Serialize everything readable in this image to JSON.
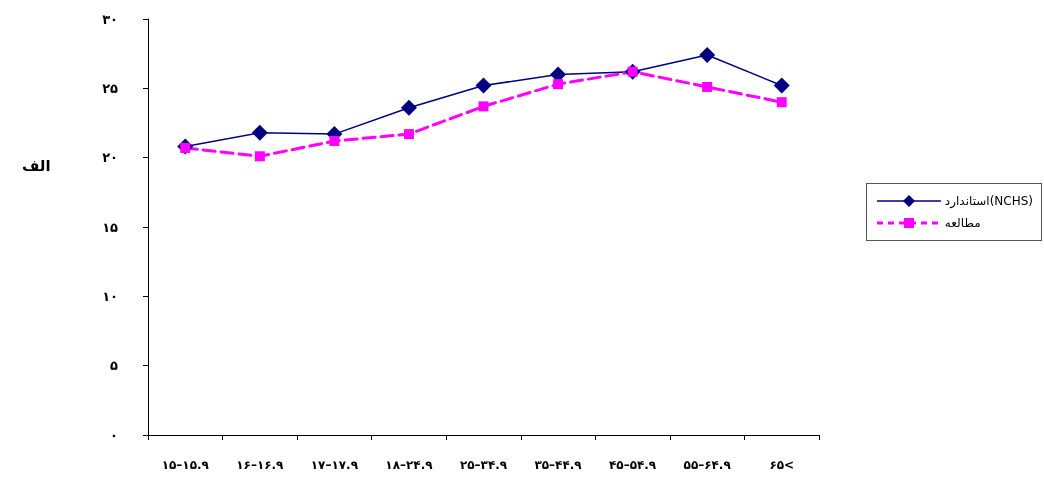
{
  "chart_data": {
    "type": "line",
    "ylabel": "الف",
    "categories": [
      "۱۵–۱۵.۹",
      "۱۶–۱۶.۹",
      "۱۷–۱۷.۹",
      "۱۸–۲۴.۹",
      "۲۵–۳۴.۹",
      "۳۵–۴۴.۹",
      "۴۵–۵۴.۹",
      "۵۵–۶۴.۹",
      "۶۵<"
    ],
    "series": [
      {
        "name": "استاندارد(NCHS)",
        "color": "#000080",
        "marker": "diamond",
        "line_style": "solid",
        "values": [
          20.8,
          21.8,
          21.7,
          23.6,
          25.2,
          26.0,
          26.2,
          27.4,
          25.2
        ]
      },
      {
        "name": "مطالعه",
        "color": "#ff00ff",
        "marker": "square",
        "line_style": "dashed",
        "values": [
          20.7,
          20.1,
          21.2,
          21.7,
          23.7,
          25.3,
          26.2,
          25.1,
          24.0
        ]
      }
    ],
    "ylim": [
      0,
      30
    ],
    "yticks": [
      {
        "value": 0,
        "label": "۰"
      },
      {
        "value": 5,
        "label": "۵"
      },
      {
        "value": 10,
        "label": "۱۰"
      },
      {
        "value": 15,
        "label": "۱۵"
      },
      {
        "value": 20,
        "label": "۲۰"
      },
      {
        "value": 25,
        "label": "۲۵"
      },
      {
        "value": 30,
        "label": "۳۰"
      }
    ],
    "grid": false,
    "legend": "right"
  }
}
